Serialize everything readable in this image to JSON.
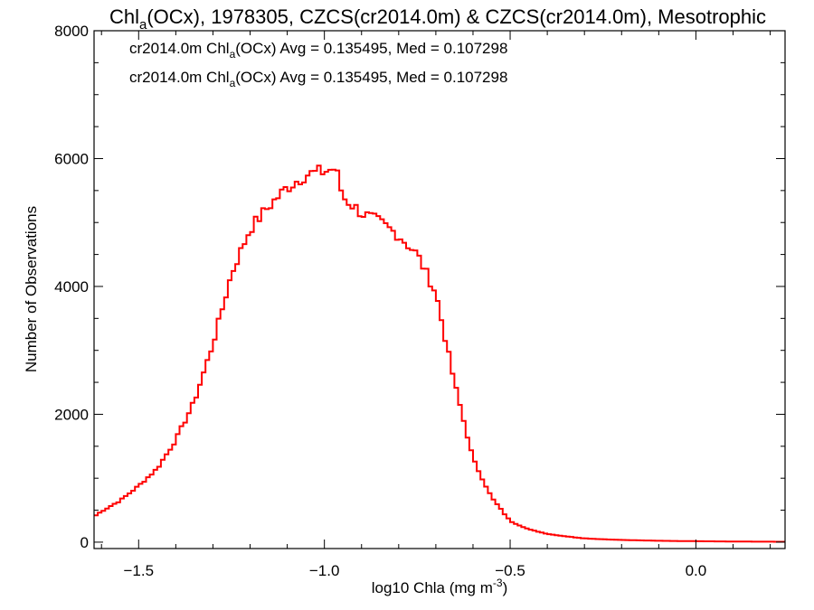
{
  "chart_data": {
    "type": "histogram",
    "title": {
      "pre": "Chl",
      "sub": "a",
      "post": "(OCx), 1978305, CZCS(cr2014.0m) & CZCS(cr2014.0m), Mesotrophic"
    },
    "xlabel": {
      "pre": "log10 Chla (mg m",
      "sup": "-3",
      "post": ")"
    },
    "ylabel": "Number of Observations",
    "xlim": [
      -1.62,
      0.24
    ],
    "ylim": [
      -100,
      8000
    ],
    "x_ticks": [
      {
        "value": -1.5,
        "label": "−1.5"
      },
      {
        "value": -1.0,
        "label": "−1.0"
      },
      {
        "value": -0.5,
        "label": "−0.5"
      },
      {
        "value": 0.0,
        "label": "0.0"
      }
    ],
    "y_ticks": [
      {
        "value": 0,
        "label": "0"
      },
      {
        "value": 2000,
        "label": "2000"
      },
      {
        "value": 4000,
        "label": "4000"
      },
      {
        "value": 6000,
        "label": "6000"
      },
      {
        "value": 8000,
        "label": "8000"
      }
    ],
    "annotations": [
      {
        "pre": "cr2014.0m Chl",
        "sub": "a",
        "post": "(OCx) Avg = 0.135495, Med = 0.107298",
        "color": "#000000"
      },
      {
        "pre": "cr2014.0m Chl",
        "sub": "a",
        "post": "(OCx) Avg = 0.135495, Med = 0.107298",
        "color": "#ff0000"
      }
    ],
    "bin_width": 0.01,
    "series": [
      {
        "color": "#ff0000",
        "x": [
          -1.62,
          -1.6,
          -1.55,
          -1.5,
          -1.45,
          -1.4,
          -1.35,
          -1.3,
          -1.25,
          -1.2,
          -1.15,
          -1.1,
          -1.05,
          -1.0,
          -0.97,
          -0.95,
          -0.9,
          -0.85,
          -0.8,
          -0.75,
          -0.7,
          -0.65,
          -0.6,
          -0.55,
          -0.5,
          -0.45,
          -0.4,
          -0.35,
          -0.3,
          -0.25,
          -0.2,
          -0.15,
          -0.1,
          -0.05,
          0.0,
          0.05,
          0.1,
          0.15,
          0.2,
          0.24
        ],
        "values": [
          400,
          480,
          650,
          880,
          1150,
          1600,
          2200,
          3100,
          4200,
          4900,
          5250,
          5550,
          5750,
          5800,
          5850,
          5400,
          5150,
          5000,
          4800,
          4500,
          3900,
          2500,
          1300,
          700,
          330,
          200,
          130,
          90,
          60,
          45,
          35,
          28,
          22,
          18,
          15,
          12,
          10,
          8,
          7,
          6
        ]
      }
    ]
  }
}
